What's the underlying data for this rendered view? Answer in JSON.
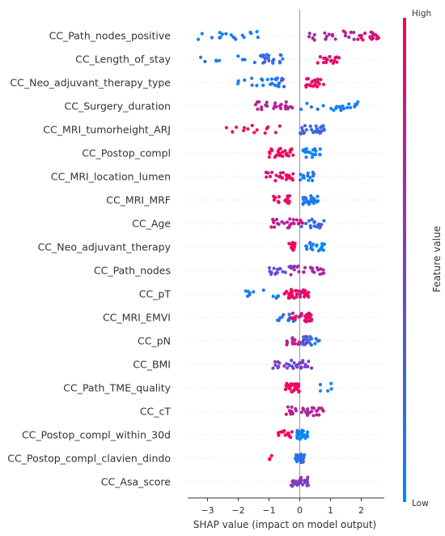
{
  "chart_data": {
    "type": "scatter",
    "subtype": "shap-beeswarm",
    "xlabel": "SHAP value (impact on model output)",
    "ylabel": "",
    "xlim": [
      -3.4,
      2.8
    ],
    "xticks": [
      -3,
      -2,
      -1,
      0,
      1,
      2
    ],
    "xtick_labels": [
      "−3",
      "−2",
      "−1",
      "0",
      "1",
      "2"
    ],
    "colorbar": {
      "label": "Feature value",
      "high_label": "High",
      "low_label": "Low",
      "low_color": "#008afb",
      "high_color": "#ff0052"
    },
    "features": [
      {
        "name": "CC_Path_nodes_positive",
        "groups": [
          {
            "range": [
              -3.3,
              -1.2
            ],
            "count": 18,
            "v": 0.05
          },
          {
            "range": [
              0.3,
              2.6
            ],
            "count": 28,
            "v": 0.7
          },
          {
            "range": [
              1.8,
              2.6
            ],
            "count": 10,
            "v": 0.95
          }
        ]
      },
      {
        "name": "CC_Length_of_stay",
        "groups": [
          {
            "range": [
              -3.3,
              -0.4
            ],
            "count": 12,
            "v": 0.08
          },
          {
            "range": [
              -1.3,
              -0.6
            ],
            "count": 18,
            "v": 0.25
          },
          {
            "range": [
              0.5,
              1.3
            ],
            "count": 18,
            "v": 0.85
          }
        ]
      },
      {
        "name": "CC_Neo_adjuvant_therapy_type",
        "groups": [
          {
            "range": [
              -2.2,
              -0.6
            ],
            "count": 22,
            "v": 0.1
          },
          {
            "range": [
              -0.6,
              -0.5
            ],
            "count": 4,
            "v": 0.35
          },
          {
            "range": [
              0.2,
              0.8
            ],
            "count": 20,
            "v": 0.95
          }
        ]
      },
      {
        "name": "CC_Surgery_duration",
        "groups": [
          {
            "range": [
              -1.6,
              -0.2
            ],
            "count": 24,
            "v": 0.72
          },
          {
            "range": [
              0.0,
              1.9
            ],
            "count": 22,
            "v": 0.1
          }
        ]
      },
      {
        "name": "CC_MRI_tumorheight_ARJ",
        "groups": [
          {
            "range": [
              -2.5,
              -0.3
            ],
            "count": 14,
            "v": 0.95
          },
          {
            "range": [
              0.0,
              0.8
            ],
            "count": 24,
            "v": 0.25
          }
        ]
      },
      {
        "name": "CC_Postop_compl",
        "groups": [
          {
            "range": [
              -1.0,
              -0.2
            ],
            "count": 26,
            "v": 0.97
          },
          {
            "range": [
              0.1,
              0.7
            ],
            "count": 20,
            "v": 0.05
          }
        ]
      },
      {
        "name": "CC_MRI_location_lumen",
        "groups": [
          {
            "range": [
              -1.1,
              -0.2
            ],
            "count": 24,
            "v": 0.9
          },
          {
            "range": [
              0.0,
              0.5
            ],
            "count": 14,
            "v": 0.1
          }
        ]
      },
      {
        "name": "CC_MRI_MRF",
        "groups": [
          {
            "range": [
              -0.9,
              -0.3
            ],
            "count": 18,
            "v": 0.95
          },
          {
            "range": [
              0.1,
              0.6
            ],
            "count": 26,
            "v": 0.1
          }
        ]
      },
      {
        "name": "CC_Age",
        "groups": [
          {
            "range": [
              -1.0,
              0.2
            ],
            "count": 26,
            "v": 0.75
          },
          {
            "range": [
              0.0,
              0.8
            ],
            "count": 16,
            "v": 0.25
          }
        ]
      },
      {
        "name": "CC_Neo_adjuvant_therapy",
        "groups": [
          {
            "range": [
              -0.35,
              -0.15
            ],
            "count": 16,
            "v": 0.95
          },
          {
            "range": [
              0.2,
              0.8
            ],
            "count": 20,
            "v": 0.05
          }
        ]
      },
      {
        "name": "CC_Path_nodes",
        "groups": [
          {
            "range": [
              -1.0,
              -0.2
            ],
            "count": 18,
            "v": 0.35
          },
          {
            "range": [
              -0.3,
              0.8
            ],
            "count": 22,
            "v": 0.7
          }
        ]
      },
      {
        "name": "CC_pT",
        "groups": [
          {
            "range": [
              -1.9,
              -0.6
            ],
            "count": 12,
            "v": 0.1
          },
          {
            "range": [
              -0.5,
              0.3
            ],
            "count": 40,
            "v": 0.9
          }
        ]
      },
      {
        "name": "CC_MRI_EMVI",
        "groups": [
          {
            "range": [
              -0.8,
              -0.1
            ],
            "count": 14,
            "v": 0.15
          },
          {
            "range": [
              -0.3,
              0.4
            ],
            "count": 30,
            "v": 0.85
          }
        ]
      },
      {
        "name": "CC_pN",
        "groups": [
          {
            "range": [
              -0.5,
              0.3
            ],
            "count": 24,
            "v": 0.75
          },
          {
            "range": [
              0.0,
              0.7
            ],
            "count": 16,
            "v": 0.1
          }
        ]
      },
      {
        "name": "CC_BMI",
        "groups": [
          {
            "range": [
              -0.9,
              0.4
            ],
            "count": 32,
            "v": 0.5
          }
        ]
      },
      {
        "name": "CC_Path_TME_quality",
        "groups": [
          {
            "range": [
              -0.5,
              0.0
            ],
            "count": 34,
            "v": 0.98
          },
          {
            "range": [
              0.5,
              1.2
            ],
            "count": 5,
            "v": 0.05
          }
        ]
      },
      {
        "name": "CC_cT",
        "groups": [
          {
            "range": [
              -0.5,
              0.8
            ],
            "count": 34,
            "v": 0.7
          }
        ]
      },
      {
        "name": "CC_Postop_compl_within_30d",
        "groups": [
          {
            "range": [
              -0.7,
              -0.1
            ],
            "count": 14,
            "v": 0.95
          },
          {
            "range": [
              -0.1,
              0.25
            ],
            "count": 24,
            "v": 0.05
          }
        ]
      },
      {
        "name": "CC_Postop_compl_clavien_dindo",
        "groups": [
          {
            "range": [
              -1.1,
              -0.9
            ],
            "count": 3,
            "v": 0.98
          },
          {
            "range": [
              -0.15,
              0.15
            ],
            "count": 36,
            "v": 0.15
          }
        ]
      },
      {
        "name": "CC_Asa_score",
        "groups": [
          {
            "range": [
              -0.3,
              0.3
            ],
            "count": 28,
            "v": 0.55
          }
        ]
      }
    ]
  }
}
